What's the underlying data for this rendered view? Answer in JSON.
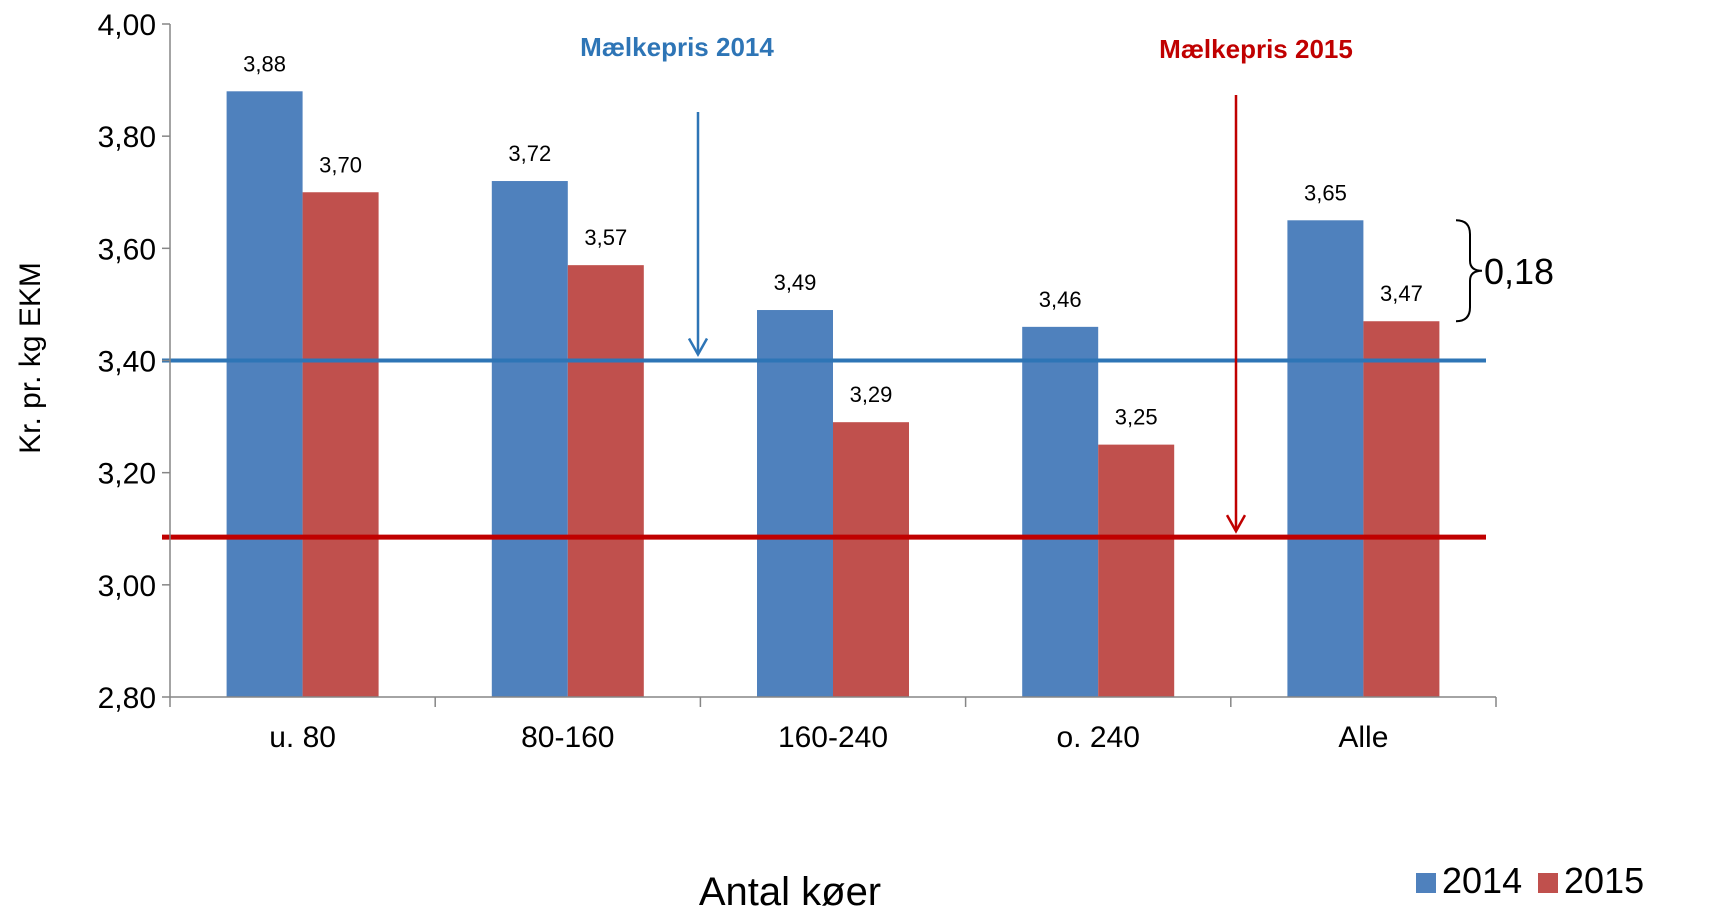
{
  "chart_data": {
    "type": "bar",
    "categories": [
      "u. 80",
      "80-160",
      "160-240",
      "o. 240",
      "Alle"
    ],
    "series": [
      {
        "name": "2014",
        "values": [
          3.88,
          3.72,
          3.49,
          3.46,
          3.65
        ],
        "labels": [
          "3,88",
          "3,72",
          "3,49",
          "3,46",
          "3,65"
        ],
        "color": "#4F81BD"
      },
      {
        "name": "2015",
        "values": [
          3.7,
          3.57,
          3.29,
          3.25,
          3.47
        ],
        "labels": [
          "3,70",
          "3,57",
          "3,29",
          "3,25",
          "3,47"
        ],
        "color": "#C0504D"
      }
    ],
    "xlabel": "Antal køer",
    "ylabel": "Kr. pr. kg EKM",
    "ylim": [
      2.8,
      4.0
    ],
    "yticks": [
      2.8,
      3.0,
      3.2,
      3.4,
      3.6,
      3.8,
      4.0
    ],
    "ytick_labels": [
      "2,80",
      "3,00",
      "3,20",
      "3,40",
      "3,60",
      "3,80",
      "4,00"
    ],
    "reference_lines": [
      {
        "label": "Mælkepris 2014",
        "value": 3.4,
        "color": "#2E75B6"
      },
      {
        "label": "Mælkepris 2015",
        "value": 3.085,
        "color": "#C00000"
      }
    ],
    "annotation": {
      "text": "0,18",
      "from": 3.47,
      "to": 3.65
    },
    "legend_position": "bottom-right",
    "grid": false
  }
}
